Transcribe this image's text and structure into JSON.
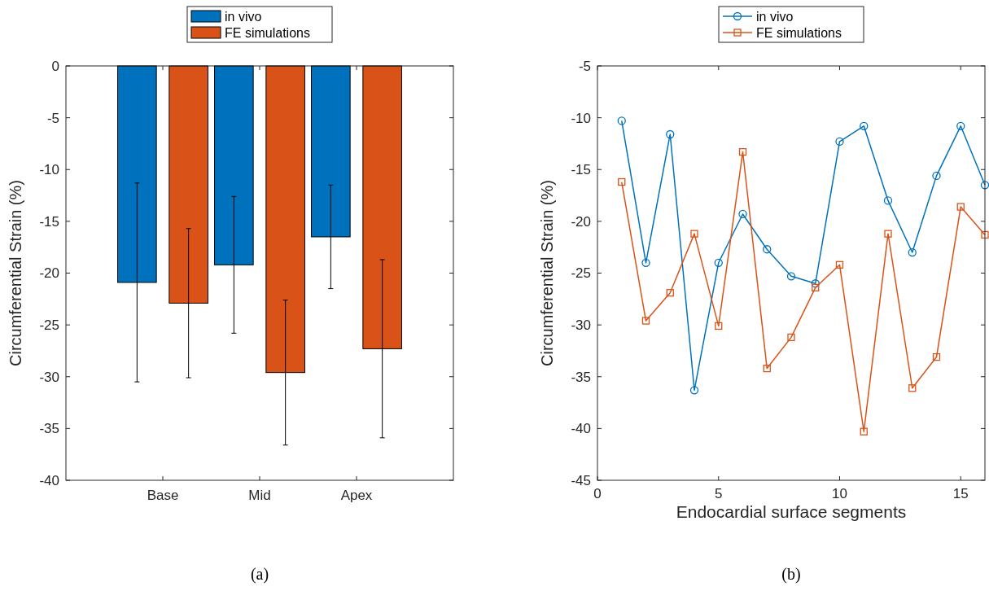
{
  "chart_data": [
    {
      "type": "bar",
      "ylabel": "Circumferential Strain (%)",
      "categories": [
        "Base",
        "Mid",
        "Apex"
      ],
      "ylim": [
        -40,
        0
      ],
      "yticks": [
        -40,
        -35,
        -30,
        -25,
        -20,
        -15,
        -10,
        -5,
        0
      ],
      "legend": "top",
      "grid": false,
      "annotations": [
        "(a)"
      ],
      "series": [
        {
          "name": "in vivo",
          "color": "#0072bd",
          "values": [
            -20.9,
            -19.2,
            -16.5
          ],
          "errors": [
            9.6,
            6.6,
            5.0
          ]
        },
        {
          "name": "FE simulations",
          "color": "#d95319",
          "values": [
            -22.9,
            -29.6,
            -27.3
          ],
          "errors": [
            7.2,
            7.0,
            8.6
          ]
        }
      ]
    },
    {
      "type": "line",
      "xlabel": "Endocardial surface segments",
      "ylabel": "Circumferential Strain (%)",
      "x": [
        1,
        2,
        3,
        4,
        5,
        6,
        7,
        8,
        9,
        10,
        11,
        12,
        13,
        14,
        15,
        16
      ],
      "xlim": [
        0,
        16
      ],
      "xticks": [
        0,
        5,
        10,
        15
      ],
      "ylim": [
        -45,
        -5
      ],
      "yticks": [
        -45,
        -40,
        -35,
        -30,
        -25,
        -20,
        -15,
        -10,
        -5
      ],
      "legend": "top",
      "grid": false,
      "annotations": [
        "(b)"
      ],
      "series": [
        {
          "name": "in vivo",
          "color": "#0072bd",
          "marker": "circle",
          "values": [
            -10.3,
            -24.0,
            -11.6,
            -36.3,
            -24.0,
            -19.3,
            -22.7,
            -25.3,
            -26.0,
            -12.3,
            -10.8,
            -18.0,
            -23.0,
            -15.6,
            -10.8,
            -16.5
          ]
        },
        {
          "name": "FE simulations",
          "color": "#d95319",
          "marker": "square",
          "values": [
            -16.2,
            -29.6,
            -26.9,
            -21.2,
            -30.1,
            -13.3,
            -34.2,
            -31.2,
            -26.4,
            -24.2,
            -40.3,
            -21.2,
            -36.1,
            -33.1,
            -18.6,
            -21.3
          ]
        }
      ]
    }
  ]
}
